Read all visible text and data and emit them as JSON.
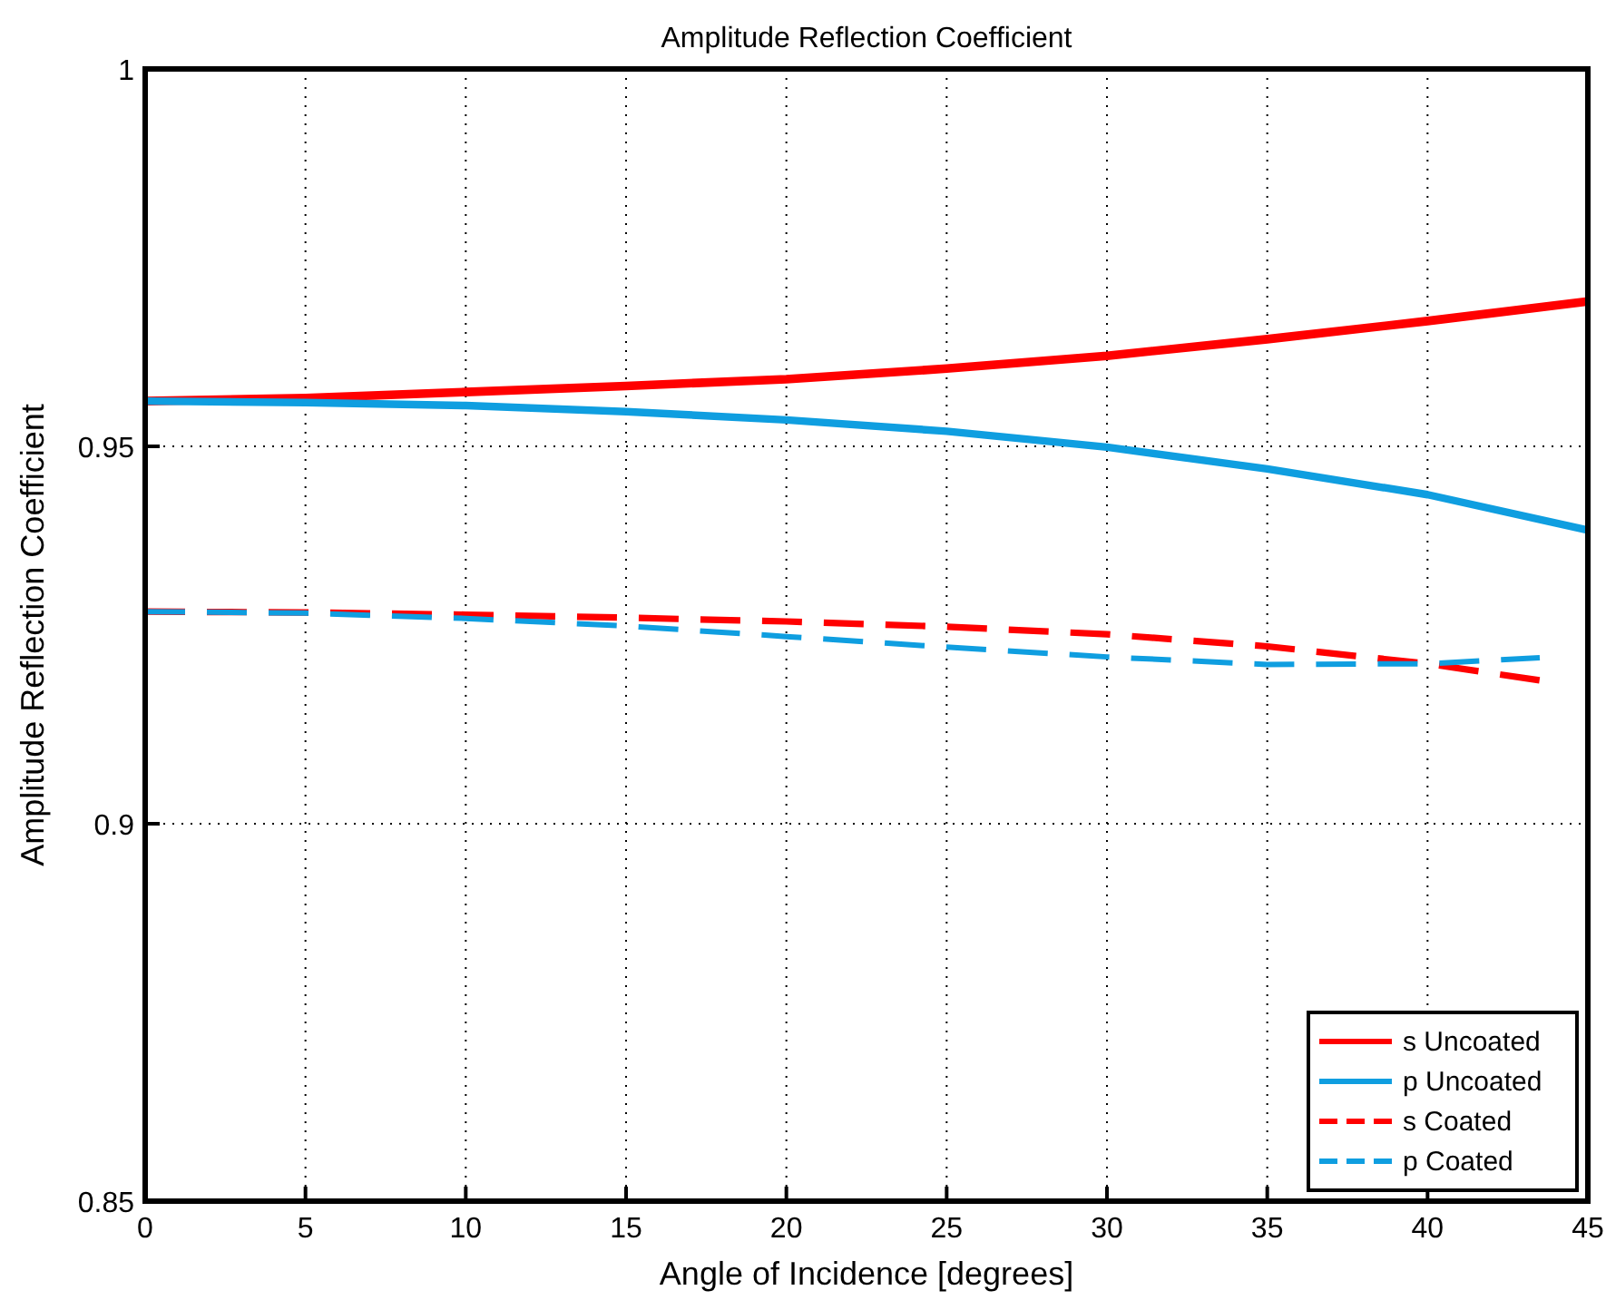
{
  "chart_data": {
    "type": "line",
    "title": "Amplitude Reflection Coefficient",
    "xlabel": "Angle of Incidence [degrees]",
    "ylabel": "Amplitude Reflection Coefficient",
    "xlim": [
      0,
      45
    ],
    "ylim": [
      0.85,
      1
    ],
    "xticks": [
      0,
      5,
      10,
      15,
      20,
      25,
      30,
      35,
      40,
      45
    ],
    "yticks": [
      {
        "value": 0.85,
        "label": "0.85"
      },
      {
        "value": 0.9,
        "label": "0.9"
      },
      {
        "value": 0.95,
        "label": "0.95"
      },
      1
    ],
    "grid": true,
    "legend": "bottom right",
    "series": [
      {
        "name": "s Uncoated",
        "color": "#ff0000",
        "line_style": "solid",
        "x": [
          0,
          5,
          10,
          15,
          20,
          25,
          30,
          35,
          40,
          45
        ],
        "values": [
          0.956,
          0.9564,
          0.9572,
          0.958,
          0.9589,
          0.9603,
          0.962,
          0.9642,
          0.9666,
          0.9692
        ]
      },
      {
        "name": "p Uncoated",
        "color": "#0f9ee0",
        "line_style": "solid",
        "x": [
          0,
          5,
          10,
          15,
          20,
          25,
          30,
          35,
          40,
          45
        ],
        "values": [
          0.956,
          0.9558,
          0.9554,
          0.9546,
          0.9535,
          0.952,
          0.9499,
          0.947,
          0.9436,
          0.9389
        ]
      },
      {
        "name": "s Coated",
        "color": "#ff0000",
        "line_style": "dashed",
        "x": [
          0,
          5,
          10,
          15,
          20,
          25,
          30,
          35,
          40,
          43.5
        ],
        "values": [
          0.9281,
          0.928,
          0.9277,
          0.9273,
          0.9268,
          0.9261,
          0.9251,
          0.9235,
          0.9212,
          0.919
        ]
      },
      {
        "name": "p Coated",
        "color": "#0f9ee0",
        "line_style": "dashed",
        "x": [
          0,
          5,
          10,
          15,
          20,
          25,
          30,
          35,
          40,
          43.5
        ],
        "values": [
          0.9281,
          0.9279,
          0.9272,
          0.9262,
          0.9248,
          0.9234,
          0.9221,
          0.9211,
          0.9212,
          0.922
        ]
      }
    ]
  }
}
